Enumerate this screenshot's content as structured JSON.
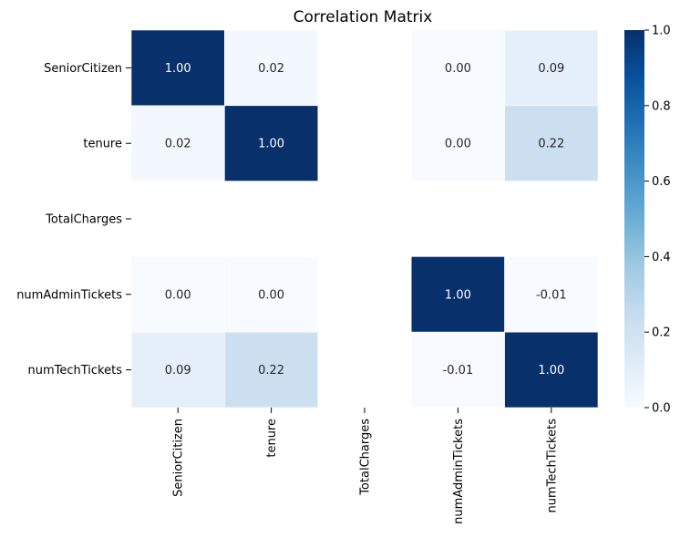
{
  "chart_data": {
    "type": "heatmap",
    "title": "Correlation Matrix",
    "xlabel": "",
    "ylabel": "",
    "rows": [
      "SeniorCitizen",
      "tenure",
      "TotalCharges",
      "numAdminTickets",
      "numTechTickets"
    ],
    "columns": [
      "SeniorCitizen",
      "tenure",
      "TotalCharges",
      "numAdminTickets",
      "numTechTickets"
    ],
    "values": [
      [
        1.0,
        0.02,
        null,
        -0.0,
        0.09
      ],
      [
        0.02,
        1.0,
        null,
        -0.0,
        0.22
      ],
      [
        null,
        null,
        null,
        null,
        null
      ],
      [
        -0.0,
        -0.0,
        null,
        1.0,
        -0.01
      ],
      [
        0.09,
        0.22,
        null,
        -0.01,
        1.0
      ]
    ],
    "value_format": "2 decimals",
    "colormap": "Blues",
    "colorbar": {
      "range": [
        0.0,
        1.0
      ],
      "ticks": [
        "0.0",
        "0.2",
        "0.4",
        "0.6",
        "0.8",
        "1.0"
      ]
    },
    "grid_lines_color": "#ffffff",
    "missing_cells": "blank"
  }
}
